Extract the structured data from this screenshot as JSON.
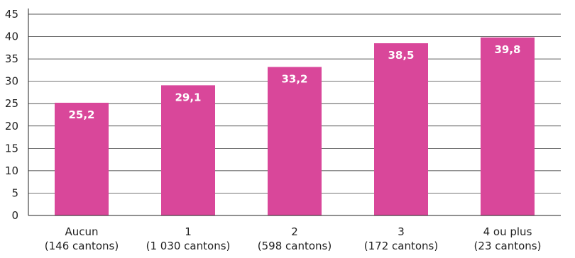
{
  "chart_data": {
    "type": "bar",
    "categories": [
      [
        "Aucun",
        "(146 cantons)"
      ],
      [
        "1",
        "(1 030 cantons)"
      ],
      [
        "2",
        "(598 cantons)"
      ],
      [
        "3",
        "(172 cantons)"
      ],
      [
        "4 ou plus",
        "(23 cantons)"
      ]
    ],
    "values": [
      25.2,
      29.1,
      33.2,
      38.5,
      39.8
    ],
    "value_labels": [
      "25,2",
      "29,1",
      "33,2",
      "38,5",
      "39,8"
    ],
    "ylim": [
      0,
      45
    ],
    "yticks": [
      0,
      5,
      10,
      15,
      20,
      25,
      30,
      35,
      40,
      45
    ],
    "grid": true,
    "title": "",
    "xlabel": "",
    "ylabel": "",
    "bar_color": "#d9479a"
  }
}
